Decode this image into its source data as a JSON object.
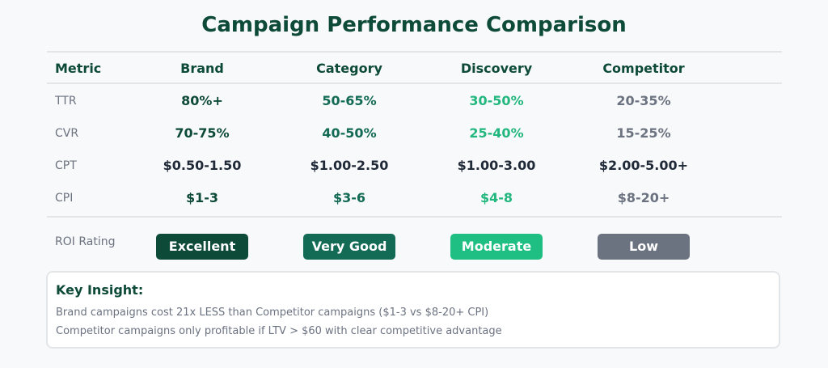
{
  "title": "Campaign Performance Comparison",
  "columns": [
    "Metric",
    "Brand",
    "Category",
    "Discovery",
    "Competitor"
  ],
  "rows": [
    {
      "metric": "TTR",
      "values": [
        "80%+",
        "50-65%",
        "30-50%",
        "20-35%"
      ]
    },
    {
      "metric": "CVR",
      "values": [
        "70-75%",
        "40-50%",
        "25-40%",
        "15-25%"
      ]
    },
    {
      "metric": "CPT",
      "values": [
        "$0.50-1.50",
        "$1.00-2.50",
        "$1.00-3.00",
        "$2.00-5.00+"
      ]
    },
    {
      "metric": "CPI",
      "values": [
        "$1-3",
        "$3-6",
        "$4-8",
        "$8-20+"
      ]
    }
  ],
  "roi": {
    "label": "ROI Rating",
    "badges": [
      "Excellent",
      "Very Good",
      "Moderate",
      "Low"
    ]
  },
  "insight": {
    "title": "Key Insight:",
    "lines": [
      "Brand campaigns cost 21x LESS than Competitor campaigns ($1-3 vs $8-20+ CPI)",
      "Competitor campaigns only profitable if LTV > $60 with clear competitive advantage"
    ]
  },
  "colors": {
    "dark_green": "#0d4a37",
    "mid_green": "#136b55",
    "light_green": "#22b77e",
    "badge_moderate": "#1fbf83",
    "gray": "#6b7280",
    "text_dark": "#1f2937"
  }
}
